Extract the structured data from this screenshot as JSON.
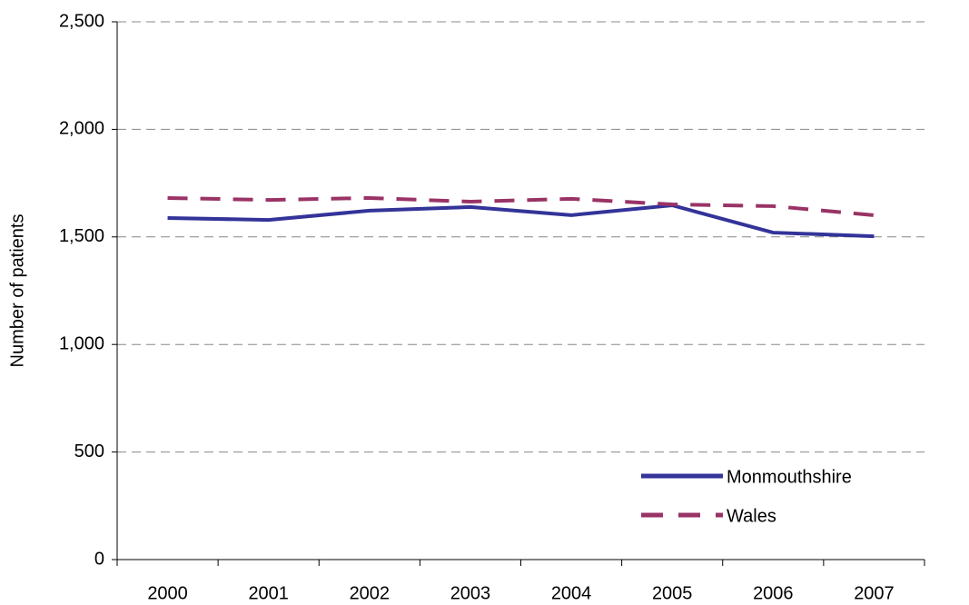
{
  "chart_data": {
    "type": "line",
    "y_label": "Number of patients",
    "categories": [
      "2000",
      "2001",
      "2002",
      "2003",
      "2004",
      "2005",
      "2006",
      "2007"
    ],
    "series": [
      {
        "name": "Monmouthshire",
        "color": "#333399",
        "dash": false,
        "values": [
          1588,
          1579,
          1622,
          1639,
          1601,
          1647,
          1520,
          1503
        ]
      },
      {
        "name": "Wales",
        "color": "#993366",
        "dash": true,
        "values": [
          1681,
          1672,
          1681,
          1664,
          1677,
          1651,
          1643,
          1601
        ]
      }
    ],
    "ylim": [
      0,
      2500
    ],
    "yticks": [
      0,
      500,
      {
        "value": 1000,
        "label": "1,000"
      },
      {
        "value": 1500,
        "label": "1,500"
      },
      {
        "value": 2000,
        "label": "2,000"
      },
      {
        "value": 2500,
        "label": "2,500"
      }
    ],
    "grid": true,
    "legend": "lower right"
  }
}
